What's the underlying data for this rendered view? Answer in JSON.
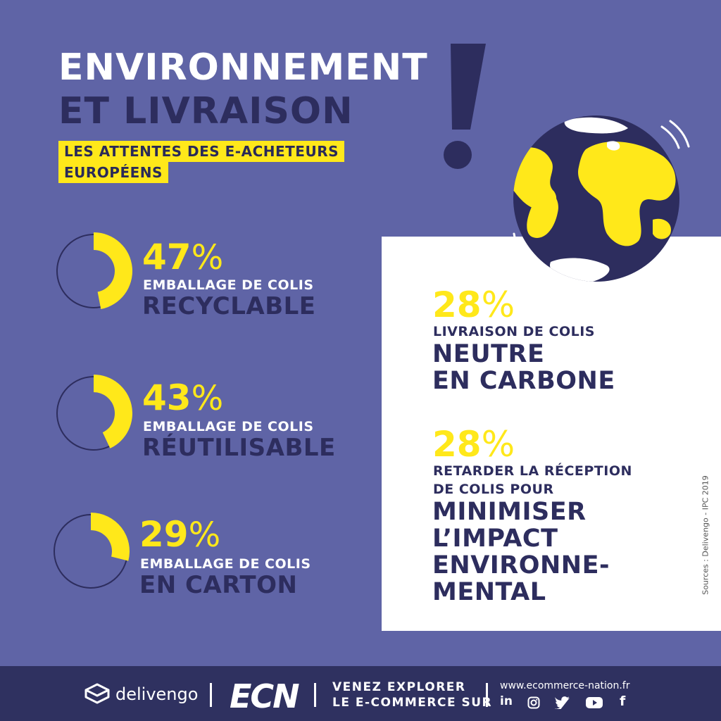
{
  "header": {
    "title_line1": "ENVIRONNEMENT",
    "title_line2": "ET LIVRAISON",
    "subtitle_line1": "LES ATTENTES DES E-ACHETEURS",
    "subtitle_line2": "EUROPÉENS"
  },
  "stats_left": [
    {
      "value": "47",
      "percent_sign": "%",
      "label": "EMBALLAGE DE COLIS",
      "highlight": "RECYCLABLE",
      "fraction": 0.47
    },
    {
      "value": "43",
      "percent_sign": "%",
      "label": "EMBALLAGE DE COLIS",
      "highlight": "RÉUTILISABLE",
      "fraction": 0.43
    },
    {
      "value": "29",
      "percent_sign": "%",
      "label": "EMBALLAGE DE COLIS",
      "highlight": "EN CARTON",
      "fraction": 0.29
    }
  ],
  "stats_right": [
    {
      "value": "28",
      "percent_sign": "%",
      "label_lines": [
        "LIVRAISON DE COLIS"
      ],
      "highlight_lines": [
        "NEUTRE",
        "EN CARBONE"
      ]
    },
    {
      "value": "28",
      "percent_sign": "%",
      "label_lines": [
        "RETARDER LA RÉCEPTION",
        "DE COLIS POUR"
      ],
      "highlight_lines": [
        "MINIMISER",
        "L’IMPACT",
        "ENVIRONNE-",
        "MENTAL"
      ]
    }
  ],
  "sources": "Sources : Delivengo - IPC 2019",
  "footer": {
    "brand1": "delivengo",
    "brand2": "ECN",
    "cta_line1": "VENEZ EXPLORER",
    "cta_line2": "LE E-COMMERCE SUR",
    "website": "www.ecommerce-nation.fr",
    "social_icons": [
      "linkedin-icon",
      "instagram-icon",
      "twitter-icon",
      "youtube-icon",
      "facebook-icon"
    ],
    "linkedin_text": "in",
    "facebook_text": "f"
  },
  "colors": {
    "background": "#5f64a6",
    "accent_yellow": "#ffe81a",
    "dark_navy": "#2d2d5e",
    "white": "#ffffff"
  }
}
